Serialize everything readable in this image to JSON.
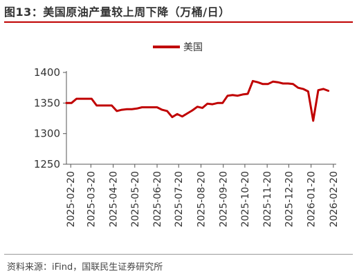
{
  "title": "图13：美国原油产量较上周下降（万桶/日）",
  "source": "资料来源：iFind，国联民生证券研究所",
  "colors": {
    "series": "#c00000",
    "axis": "#555555"
  },
  "chart_data": {
    "type": "line",
    "title": "图13：美国原油产量较上周下降（万桶/日）",
    "xlabel": "",
    "ylabel": "",
    "ylim": [
      1250,
      1400
    ],
    "yticks": [
      1250,
      1300,
      1350,
      1400
    ],
    "grid": false,
    "legend": "top-center",
    "x_ticks": [
      "2025-02-20",
      "2025-03-20",
      "2025-04-20",
      "2025-05-20",
      "2025-06-20",
      "2025-07-20",
      "2025-08-20",
      "2025-09-20",
      "2025-10-20",
      "2025-11-20",
      "2025-12-20",
      "2026-01-20",
      "2026-02-20"
    ],
    "x_range": [
      "2025-02-14",
      "2026-02-24"
    ],
    "series": [
      {
        "name": "美国",
        "points": [
          [
            "2025-02-14",
            1350
          ],
          [
            "2025-02-21",
            1350
          ],
          [
            "2025-02-28",
            1357
          ],
          [
            "2025-03-07",
            1357
          ],
          [
            "2025-03-14",
            1357
          ],
          [
            "2025-03-21",
            1357
          ],
          [
            "2025-03-28",
            1346
          ],
          [
            "2025-04-04",
            1346
          ],
          [
            "2025-04-11",
            1346
          ],
          [
            "2025-04-18",
            1346
          ],
          [
            "2025-04-25",
            1337
          ],
          [
            "2025-05-02",
            1339
          ],
          [
            "2025-05-09",
            1340
          ],
          [
            "2025-05-16",
            1340
          ],
          [
            "2025-05-23",
            1341
          ],
          [
            "2025-05-30",
            1343
          ],
          [
            "2025-06-06",
            1343
          ],
          [
            "2025-06-13",
            1343
          ],
          [
            "2025-06-20",
            1343
          ],
          [
            "2025-06-27",
            1339
          ],
          [
            "2025-07-04",
            1337
          ],
          [
            "2025-07-11",
            1327
          ],
          [
            "2025-07-18",
            1332
          ],
          [
            "2025-07-25",
            1328
          ],
          [
            "2025-08-01",
            1333
          ],
          [
            "2025-08-08",
            1338
          ],
          [
            "2025-08-15",
            1344
          ],
          [
            "2025-08-22",
            1342
          ],
          [
            "2025-08-29",
            1349
          ],
          [
            "2025-09-05",
            1348
          ],
          [
            "2025-09-12",
            1350
          ],
          [
            "2025-09-19",
            1350
          ],
          [
            "2025-09-26",
            1362
          ],
          [
            "2025-10-03",
            1363
          ],
          [
            "2025-10-10",
            1362
          ],
          [
            "2025-10-17",
            1364
          ],
          [
            "2025-10-24",
            1365
          ],
          [
            "2025-10-31",
            1386
          ],
          [
            "2025-11-07",
            1384
          ],
          [
            "2025-11-14",
            1381
          ],
          [
            "2025-11-21",
            1381
          ],
          [
            "2025-11-28",
            1385
          ],
          [
            "2025-12-05",
            1384
          ],
          [
            "2025-12-12",
            1382
          ],
          [
            "2025-12-19",
            1382
          ],
          [
            "2025-12-26",
            1381
          ],
          [
            "2026-01-02",
            1375
          ],
          [
            "2026-01-09",
            1373
          ],
          [
            "2026-01-16",
            1369
          ],
          [
            "2026-01-23",
            1321
          ],
          [
            "2026-01-30",
            1371
          ],
          [
            "2026-02-06",
            1373
          ],
          [
            "2026-02-13",
            1370
          ]
        ]
      }
    ]
  }
}
